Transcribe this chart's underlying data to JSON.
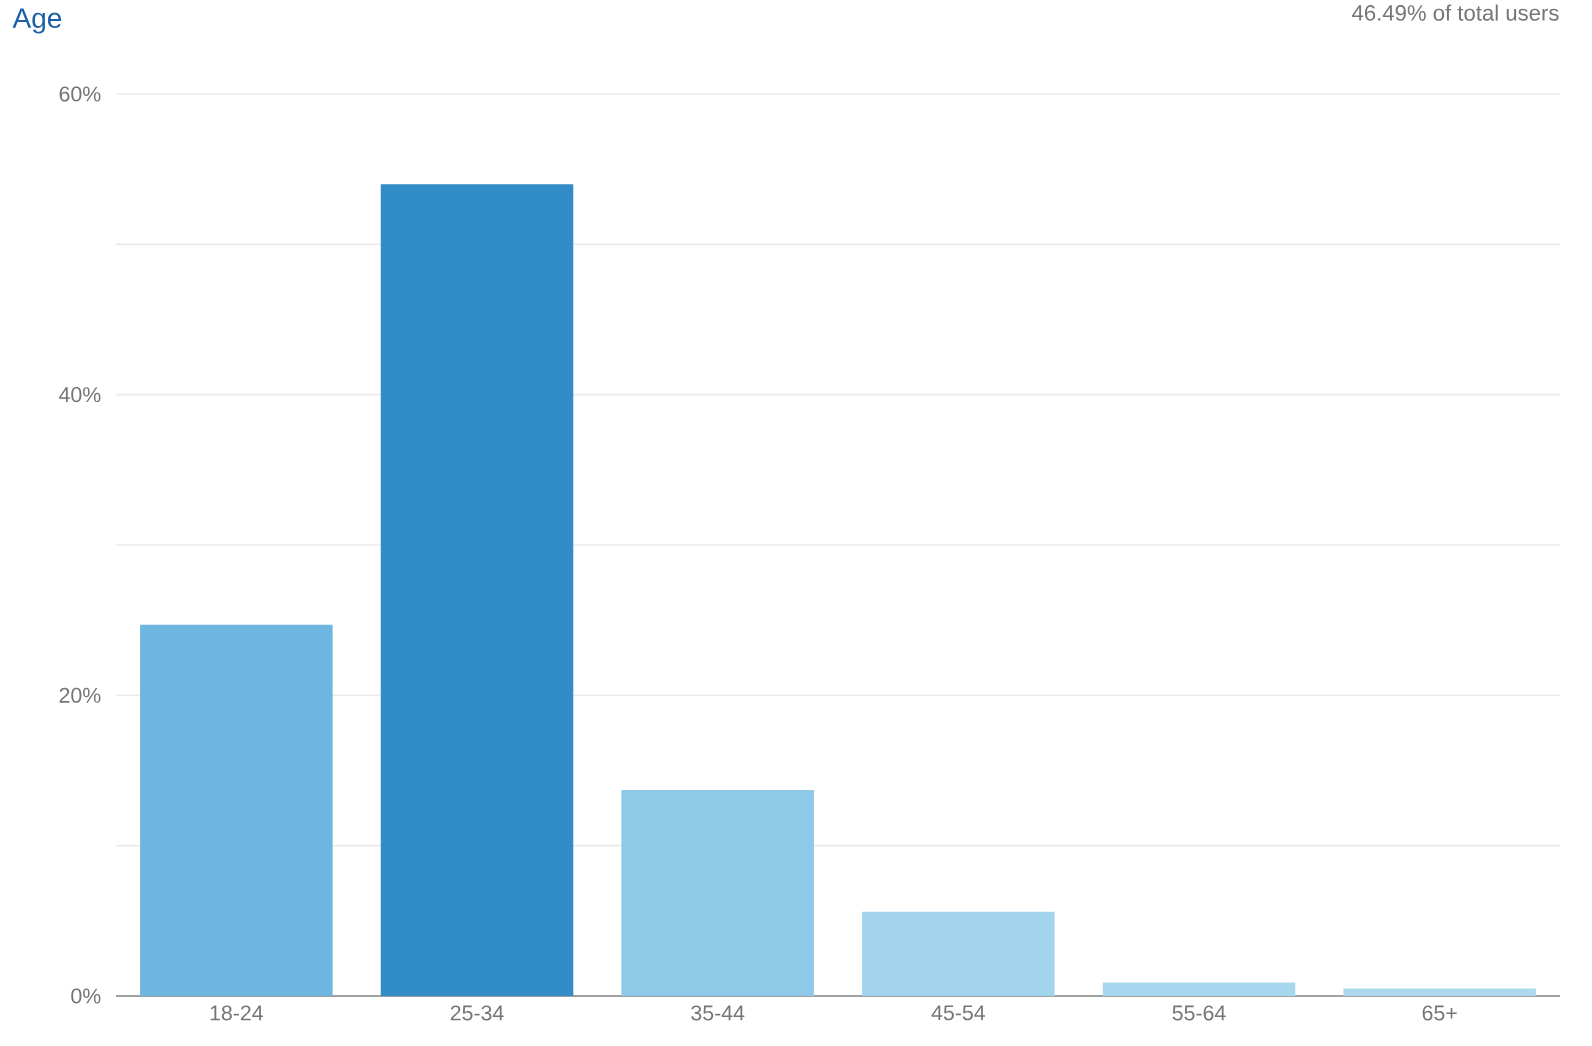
{
  "chart_data": {
    "type": "bar",
    "title": "Age",
    "subtitle": "46.49% of total users",
    "categories": [
      "18-24",
      "25-34",
      "35-44",
      "45-54",
      "55-64",
      "65+"
    ],
    "values": [
      24.7,
      54.0,
      13.7,
      5.6,
      0.9,
      0.5
    ],
    "colors": [
      "#6cb6df",
      "#318cc8",
      "#8ec9e8",
      "#a3d4ee",
      "#a7d6ef",
      "#add9f0"
    ],
    "ylim": [
      0,
      60
    ],
    "yticks": [
      {
        "value": 0,
        "label": "0%"
      },
      {
        "value": 10,
        "label": null
      },
      {
        "value": 20,
        "label": "20%"
      },
      {
        "value": 30,
        "label": null
      },
      {
        "value": 40,
        "label": "40%"
      },
      {
        "value": 50,
        "label": null
      },
      {
        "value": 60,
        "label": "60%"
      }
    ],
    "grid": "y"
  }
}
